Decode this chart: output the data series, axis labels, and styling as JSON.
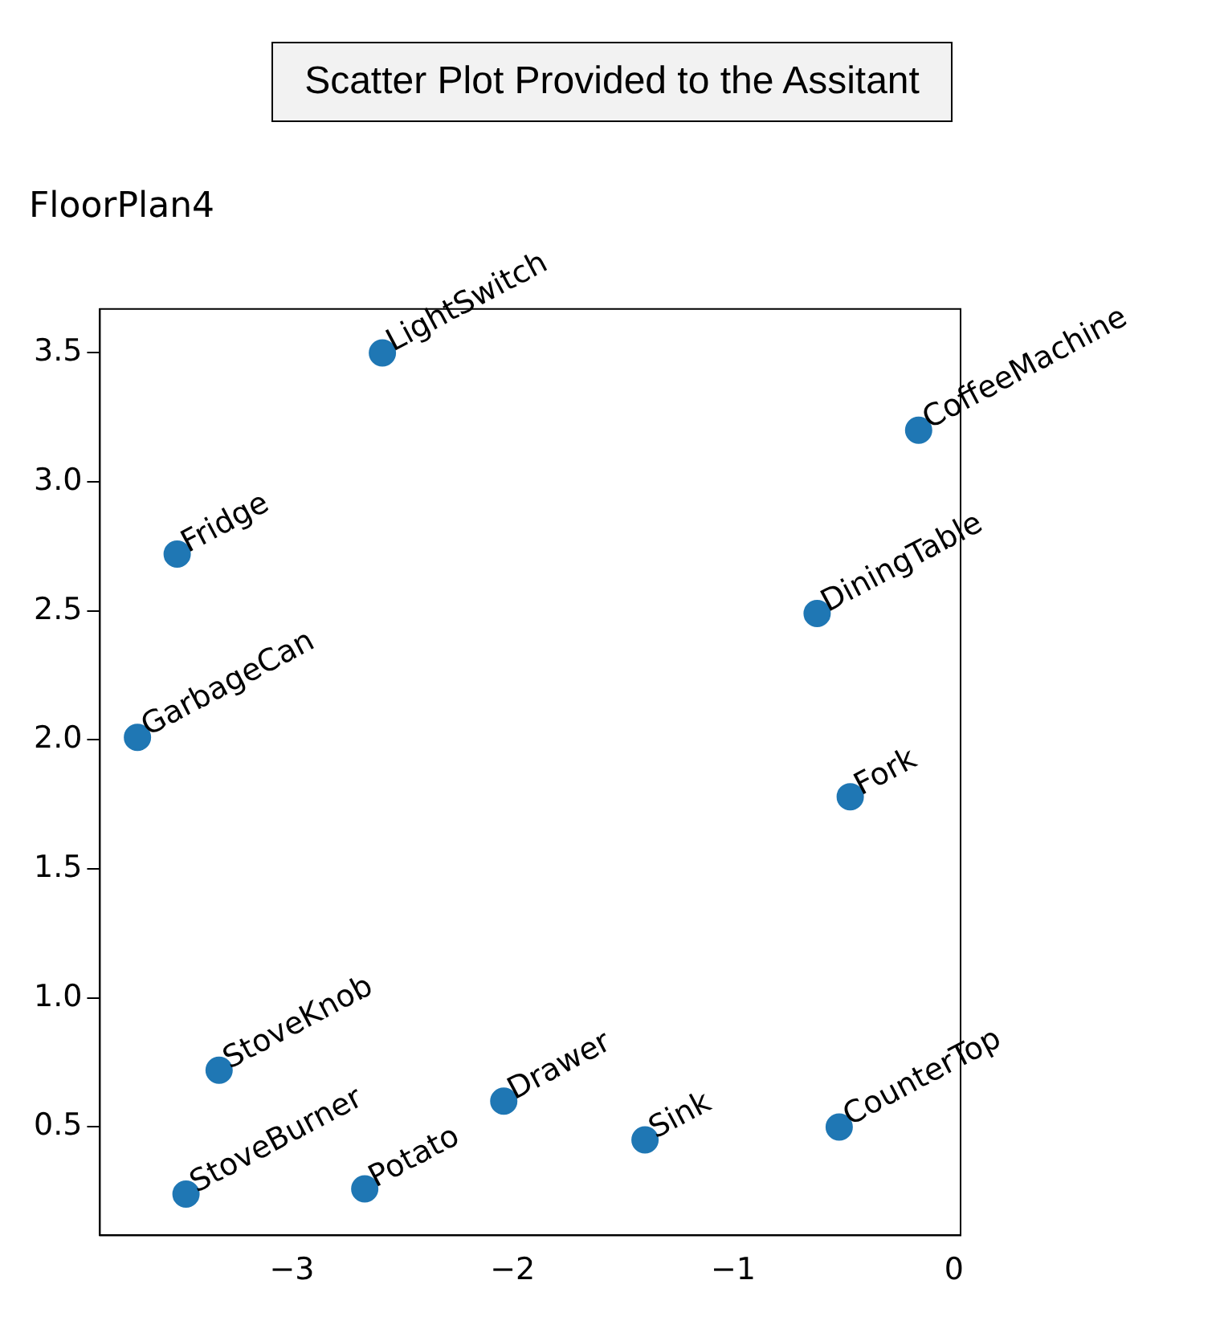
{
  "chart_data": {
    "type": "scatter",
    "title": "FloorPlan4",
    "subtitle": "Scatter Plot Provided to the Assitant",
    "x": [
      -2.59,
      -0.16,
      -3.52,
      -0.62,
      -3.7,
      -0.47,
      -3.33,
      -2.04,
      -1.4,
      -0.52,
      -3.48,
      -2.67
    ],
    "series": [
      {
        "color": "#1f77b4",
        "values": [
          3.5,
          3.2,
          2.72,
          2.49,
          2.01,
          1.78,
          0.72,
          0.6,
          0.45,
          0.5,
          0.24,
          0.26
        ]
      }
    ],
    "annotations": [
      {
        "text": "LightSwitch",
        "x": -2.59,
        "y": 3.5
      },
      {
        "text": "CoffeeMachine",
        "x": -0.16,
        "y": 3.2
      },
      {
        "text": "Fridge",
        "x": -3.52,
        "y": 2.72
      },
      {
        "text": "DiningTable",
        "x": -0.62,
        "y": 2.49
      },
      {
        "text": "GarbageCan",
        "x": -3.7,
        "y": 2.01
      },
      {
        "text": "Fork",
        "x": -0.47,
        "y": 1.78
      },
      {
        "text": "StoveKnob",
        "x": -3.33,
        "y": 0.72
      },
      {
        "text": "Drawer",
        "x": -2.04,
        "y": 0.6
      },
      {
        "text": "Sink",
        "x": -1.4,
        "y": 0.45
      },
      {
        "text": "CounterTop",
        "x": -0.52,
        "y": 0.5
      },
      {
        "text": "StoveBurner",
        "x": -3.48,
        "y": 0.24
      },
      {
        "text": "Potato",
        "x": -2.67,
        "y": 0.26
      }
    ],
    "xlim": [
      -3.87,
      0.03
    ],
    "xticks": [
      {
        "value": -3,
        "label": "−3"
      },
      {
        "value": -2,
        "label": "−2"
      },
      {
        "value": -1,
        "label": "−1"
      },
      0
    ],
    "ylim": [
      0.08,
      3.67
    ],
    "yticks": [
      0.5,
      {
        "value": 1,
        "label": "1.0"
      },
      1.5,
      {
        "value": 2,
        "label": "2.0"
      },
      2.5,
      {
        "value": 3,
        "label": "3.0"
      },
      3.5
    ],
    "grid": false,
    "legend": false,
    "marker": "circle"
  }
}
